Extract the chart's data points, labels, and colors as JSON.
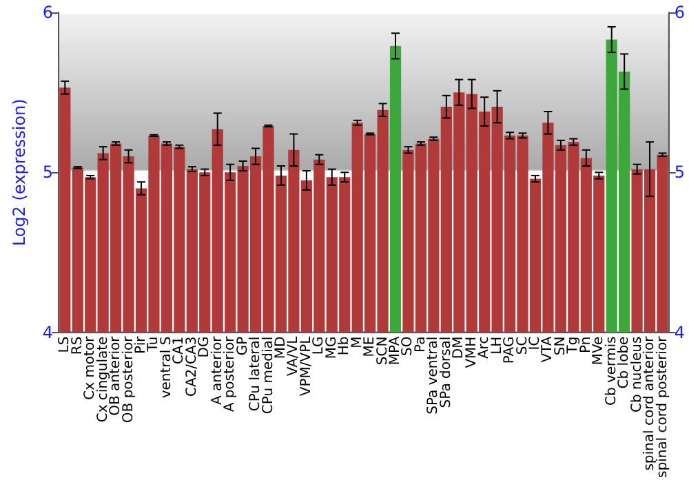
{
  "chart_data": {
    "type": "bar",
    "ylabel": "Log2 (expression)",
    "categories": [
      "LS",
      "RS",
      "Cx motor",
      "Cx cingulate",
      "OB anterior",
      "OB posterior",
      "Pir",
      "Tu",
      "ventral S",
      "CA1",
      "CA2/CA3",
      "DG",
      "A anterior",
      "A posterior",
      "GP",
      "CPu lateral",
      "CPu medial",
      "MD",
      "VA/VL",
      "VPM/VPL",
      "LG",
      "MG",
      "Hb",
      "M",
      "ME",
      "SCN",
      "MPA",
      "SO",
      "Pa",
      "SPa ventral",
      "SPa dorsal",
      "DM",
      "VMH",
      "Arc",
      "LH",
      "PAG",
      "SC",
      "IC",
      "VTA",
      "SN",
      "Tg",
      "Pn",
      "MVe",
      "Cb vermis",
      "Cb lobe",
      "Cb nucleus",
      "spinal cord anterior",
      "spinal cord posterior"
    ],
    "values": [
      5.53,
      5.03,
      4.97,
      5.12,
      5.18,
      5.1,
      4.9,
      5.23,
      5.18,
      5.16,
      5.02,
      5.0,
      5.27,
      5.0,
      5.04,
      5.1,
      5.29,
      4.98,
      5.14,
      4.95,
      5.08,
      4.97,
      4.97,
      5.31,
      5.24,
      5.39,
      5.79,
      5.14,
      5.18,
      5.21,
      5.41,
      5.5,
      5.49,
      5.38,
      5.41,
      5.23,
      5.23,
      4.96,
      5.31,
      5.17,
      5.19,
      5.09,
      4.98,
      5.83,
      5.63,
      5.02,
      5.02,
      5.11
    ],
    "errors": [
      0.04,
      0.005,
      0.01,
      0.04,
      0.01,
      0.04,
      0.04,
      0.005,
      0.01,
      0.01,
      0.015,
      0.02,
      0.1,
      0.05,
      0.03,
      0.05,
      0.005,
      0.06,
      0.1,
      0.06,
      0.03,
      0.05,
      0.03,
      0.015,
      0.005,
      0.04,
      0.08,
      0.02,
      0.01,
      0.01,
      0.07,
      0.08,
      0.09,
      0.09,
      0.1,
      0.02,
      0.015,
      0.02,
      0.07,
      0.03,
      0.02,
      0.05,
      0.02,
      0.08,
      0.11,
      0.03,
      0.17,
      0.01
    ],
    "colors": [
      "#b03a3a",
      "#b03a3a",
      "#b03a3a",
      "#b03a3a",
      "#b03a3a",
      "#b03a3a",
      "#b03a3a",
      "#b03a3a",
      "#b03a3a",
      "#b03a3a",
      "#b03a3a",
      "#b03a3a",
      "#b03a3a",
      "#b03a3a",
      "#b03a3a",
      "#b03a3a",
      "#b03a3a",
      "#b03a3a",
      "#b03a3a",
      "#b03a3a",
      "#b03a3a",
      "#b03a3a",
      "#b03a3a",
      "#b03a3a",
      "#b03a3a",
      "#b03a3a",
      "#3ca83c",
      "#b03a3a",
      "#b03a3a",
      "#b03a3a",
      "#b03a3a",
      "#b03a3a",
      "#b03a3a",
      "#b03a3a",
      "#b03a3a",
      "#b03a3a",
      "#b03a3a",
      "#b03a3a",
      "#b03a3a",
      "#b03a3a",
      "#b03a3a",
      "#b03a3a",
      "#b03a3a",
      "#3ca83c",
      "#3ca83c",
      "#b03a3a",
      "#b03a3a",
      "#b03a3a"
    ],
    "ylim": [
      4,
      6
    ],
    "yticks": [
      4,
      5,
      6
    ],
    "y2lim": [
      4,
      6
    ],
    "y2ticks": [
      4,
      5,
      6
    ],
    "grid": "y"
  }
}
